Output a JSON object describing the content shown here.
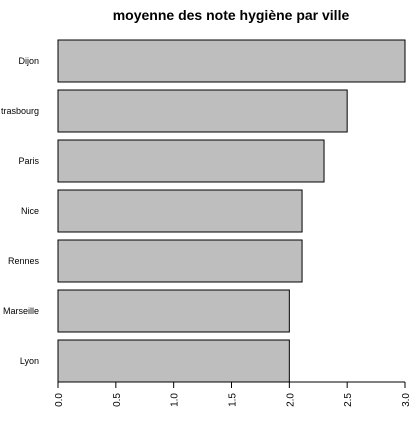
{
  "chart_data": {
    "type": "bar",
    "orientation": "horizontal",
    "title": "moyenne des note hygiène par ville",
    "categories": [
      "Dijon",
      "Strasbourg",
      "Paris",
      "Nice",
      "Rennes",
      "Marseille",
      "Lyon"
    ],
    "category_labels_shown": [
      "Dijon",
      "trasbourg",
      "Paris",
      "Nice",
      "Rennes",
      "Marseille",
      "Lyon"
    ],
    "values": [
      3.0,
      2.5,
      2.3,
      2.11,
      2.11,
      2.0,
      2.0
    ],
    "xlim": [
      0,
      3.0
    ],
    "ticks": [
      "0.0",
      "0.5",
      "1.0",
      "1.5",
      "2.0",
      "2.5",
      "3.0"
    ],
    "xlabel": "",
    "ylabel": "",
    "grid": false,
    "bar_color": "#bebebe",
    "bar_edge_color": "#000000"
  }
}
